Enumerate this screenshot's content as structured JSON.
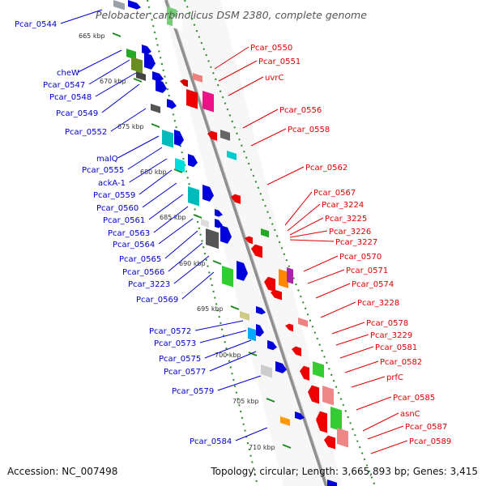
{
  "title": "Pelobacter carbinolicus DSM 2380, complete genome",
  "footer": {
    "accession": "Accession: NC_007498",
    "topology": "Topology: circular; Length: 3,665,893 bp; Genes: 3,415"
  },
  "colors": {
    "axis": "#999999",
    "tick": "#228822",
    "left_label": "#0000cc",
    "right_label": "#dd0000"
  },
  "kbp_ticks": [
    "665 kbp",
    "670 kbp",
    "675 kbp",
    "680 kbp",
    "685 kbp",
    "690 kbp",
    "695 kbp",
    "700 kbp",
    "705 kbp",
    "710 kbp"
  ],
  "left_labels": [
    "Pcar_0544",
    "cheW",
    "Pcar_0547",
    "Pcar_0548",
    "Pcar_0549",
    "Pcar_0552",
    "malQ",
    "Pcar_0555",
    "ackA-1",
    "Pcar_0559",
    "Pcar_0560",
    "Pcar_0561",
    "Pcar_0563",
    "Pcar_0564",
    "Pcar_0565",
    "Pcar_0566",
    "Pcar_3223",
    "Pcar_0569",
    "Pcar_0572",
    "Pcar_0573",
    "Pcar_0575",
    "Pcar_0577",
    "Pcar_0579",
    "Pcar_0584"
  ],
  "right_labels": [
    "Pcar_0550",
    "Pcar_0551",
    "uvrC",
    "Pcar_0556",
    "Pcar_0558",
    "Pcar_0562",
    "Pcar_0567",
    "Pcar_3224",
    "Pcar_3225",
    "Pcar_3226",
    "Pcar_3227",
    "Pcar_0570",
    "Pcar_0571",
    "Pcar_0574",
    "Pcar_3228",
    "Pcar_0578",
    "Pcar_3229",
    "Pcar_0581",
    "Pcar_0582",
    "prfC",
    "Pcar_0585",
    "asnC",
    "Pcar_0587",
    "Pcar_0589"
  ]
}
